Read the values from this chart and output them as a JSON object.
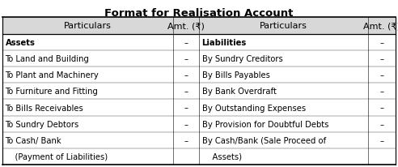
{
  "title": "Format for Realisation Account",
  "header_left": [
    "Particulars",
    "Amt. (₹)"
  ],
  "header_right": [
    "Particulars",
    "Amt. (₹)"
  ],
  "left_rows": [
    [
      "Assets",
      "–",
      true
    ],
    [
      "To Land and Building",
      "–",
      false
    ],
    [
      "To Plant and Machinery",
      "–",
      false
    ],
    [
      "To Furniture and Fitting",
      "–",
      false
    ],
    [
      "To Bills Receivables",
      "–",
      false
    ],
    [
      "To Sundry Debtors",
      "–",
      false
    ],
    [
      "To Cash/ Bank",
      "–",
      false
    ],
    [
      "    (Payment of Liabilities)",
      "",
      false
    ]
  ],
  "right_rows": [
    [
      "Liabilities",
      "–",
      true
    ],
    [
      "By Sundry Creditors",
      "–",
      false
    ],
    [
      "By Bills Payables",
      "–",
      false
    ],
    [
      "By Bank Overdraft",
      "–",
      false
    ],
    [
      "By Outstanding Expenses",
      "–",
      false
    ],
    [
      "By Provision for Doubtful Debts",
      "–",
      false
    ],
    [
      "By Cash/Bank (Sale Proceed of",
      "–",
      false
    ],
    [
      "    Assets)",
      "",
      false
    ]
  ],
  "bg_color": "#ffffff",
  "border_color": "#000000",
  "title_fontsize": 9.5,
  "header_fontsize": 8,
  "row_fontsize": 7.2,
  "fig_width": 4.92,
  "fig_height": 2.07,
  "dpi": 100
}
